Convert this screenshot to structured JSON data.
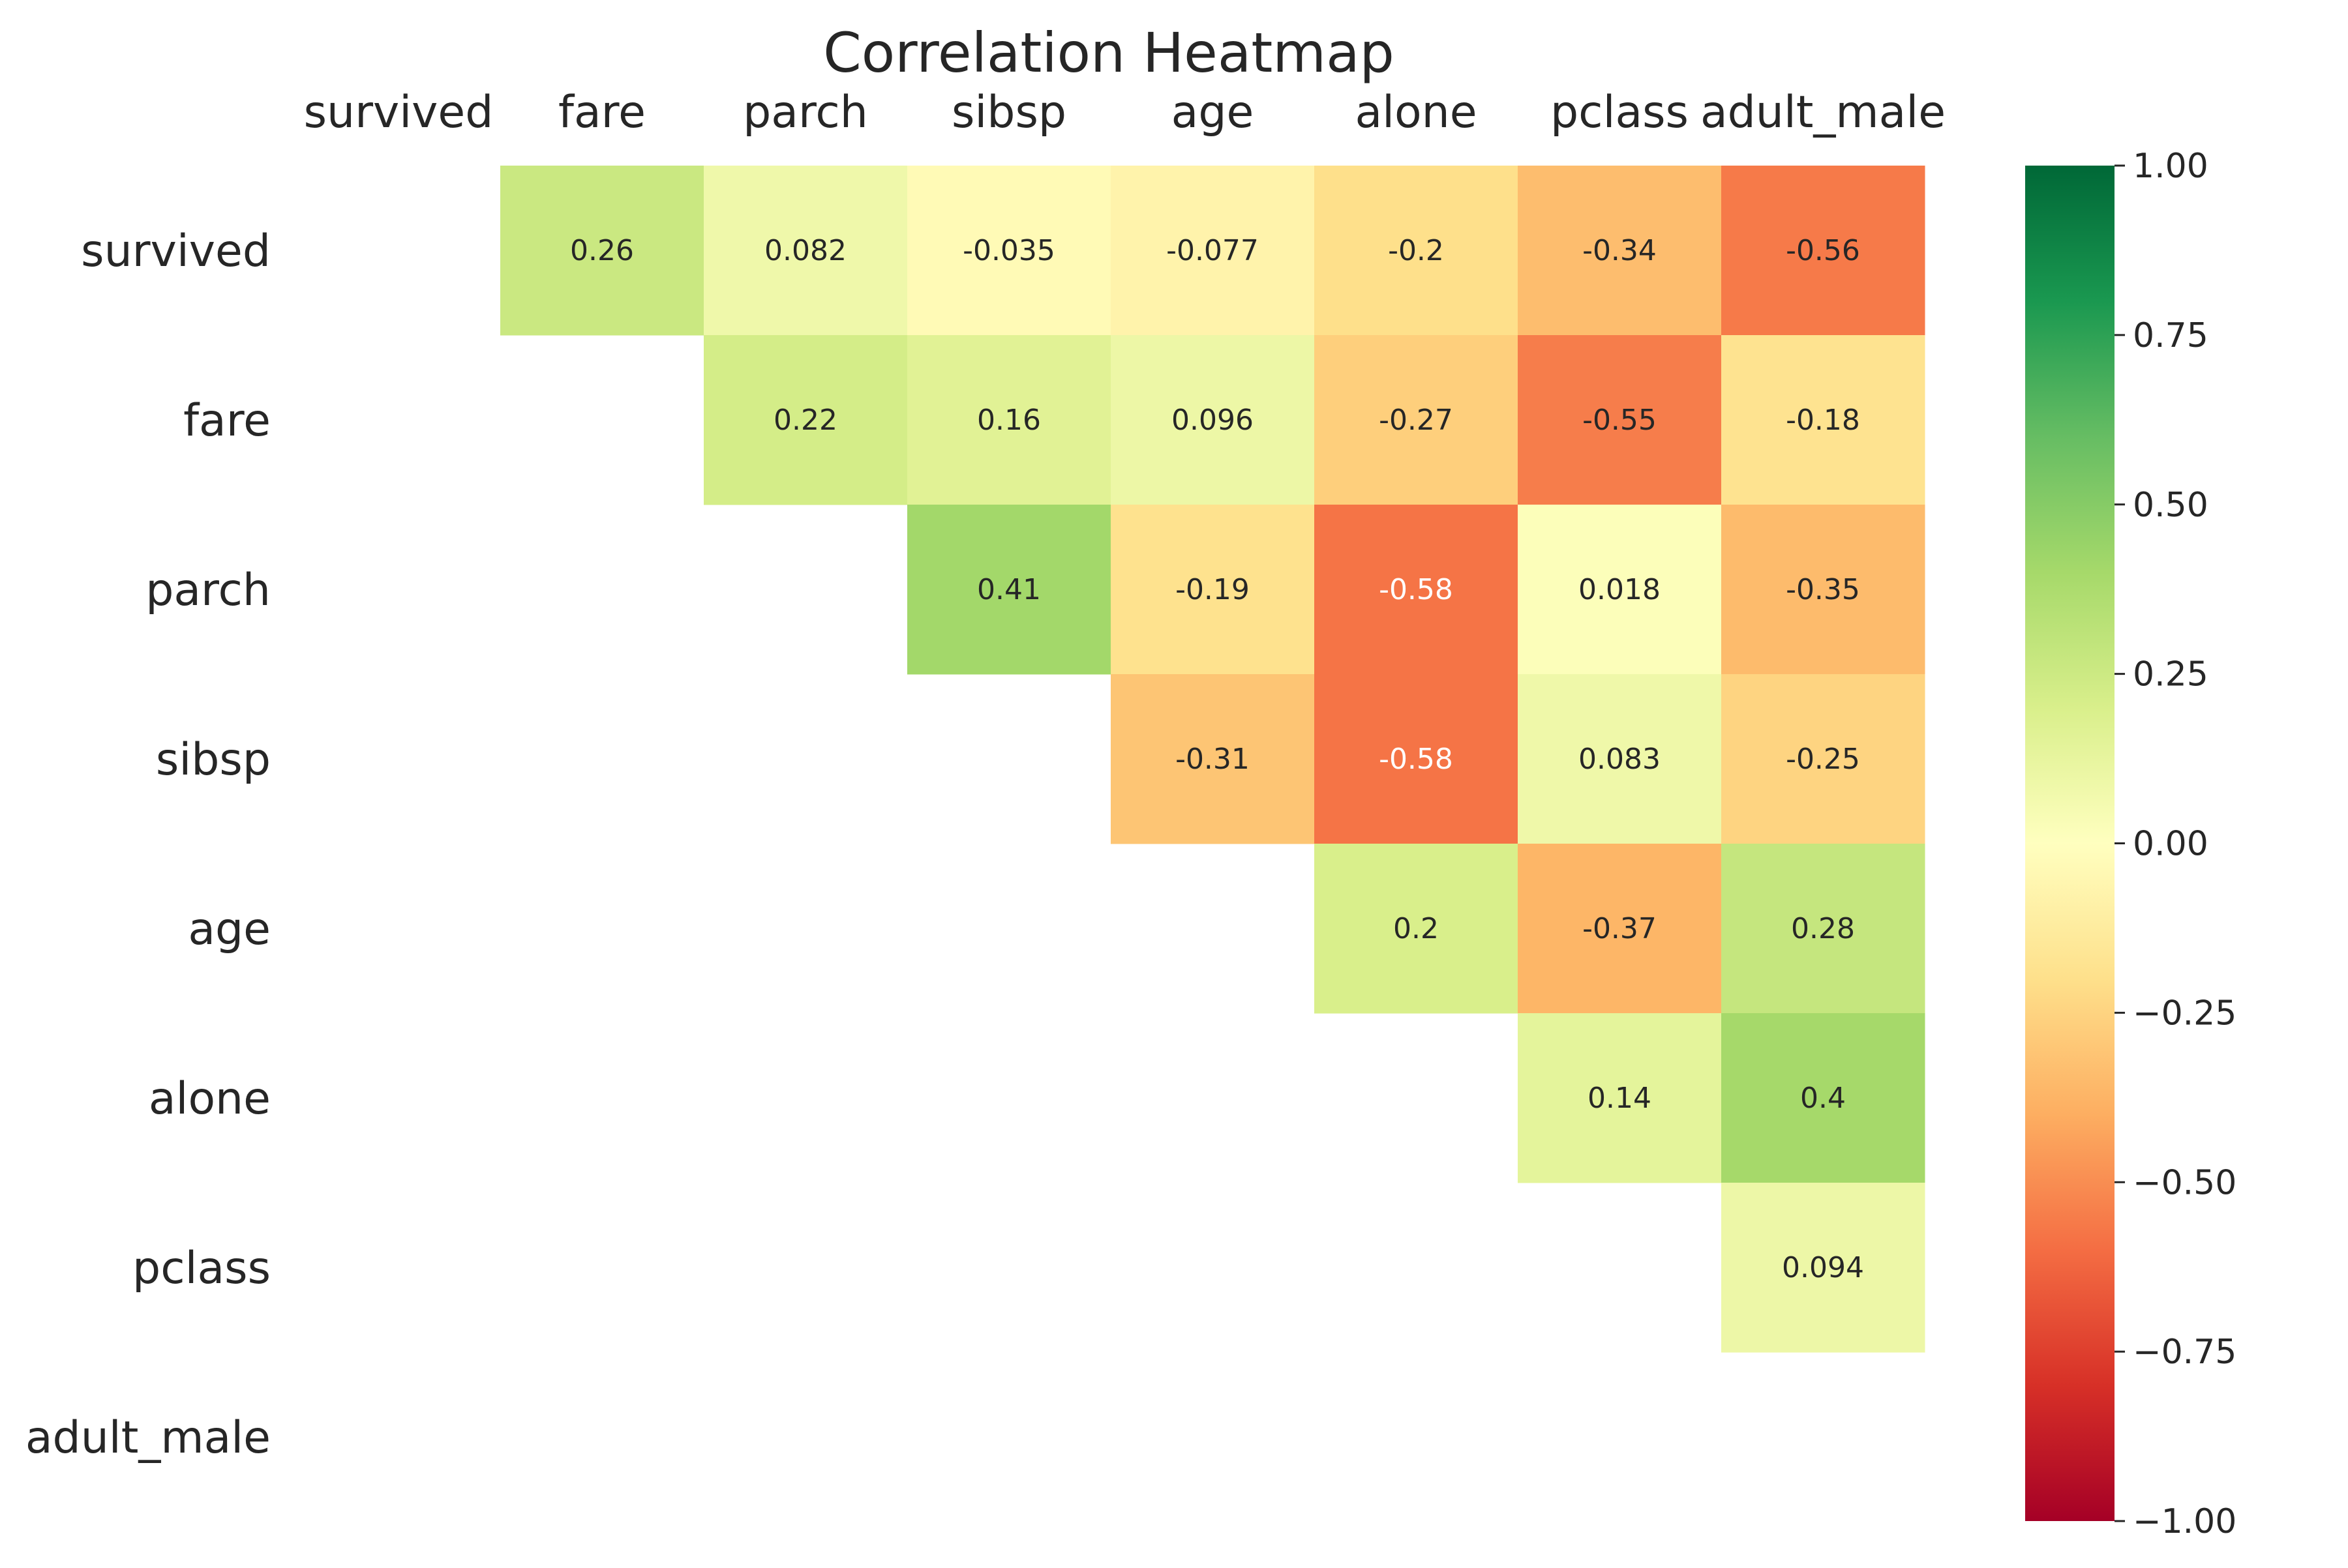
{
  "chart_data": {
    "type": "heatmap",
    "title": "Correlation Heatmap",
    "variables": [
      "survived",
      "fare",
      "parch",
      "sibsp",
      "age",
      "alone",
      "pclass",
      "adult_male"
    ],
    "mask": "lower-triangle-and-diagonal",
    "cells": [
      {
        "row": "survived",
        "col": "fare",
        "value": 0.26
      },
      {
        "row": "survived",
        "col": "parch",
        "value": 0.082
      },
      {
        "row": "survived",
        "col": "sibsp",
        "value": -0.035
      },
      {
        "row": "survived",
        "col": "age",
        "value": -0.077
      },
      {
        "row": "survived",
        "col": "alone",
        "value": -0.2
      },
      {
        "row": "survived",
        "col": "pclass",
        "value": -0.34
      },
      {
        "row": "survived",
        "col": "adult_male",
        "value": -0.56
      },
      {
        "row": "fare",
        "col": "parch",
        "value": 0.22
      },
      {
        "row": "fare",
        "col": "sibsp",
        "value": 0.16
      },
      {
        "row": "fare",
        "col": "age",
        "value": 0.096
      },
      {
        "row": "fare",
        "col": "alone",
        "value": -0.27
      },
      {
        "row": "fare",
        "col": "pclass",
        "value": -0.55
      },
      {
        "row": "fare",
        "col": "adult_male",
        "value": -0.18
      },
      {
        "row": "parch",
        "col": "sibsp",
        "value": 0.41
      },
      {
        "row": "parch",
        "col": "age",
        "value": -0.19
      },
      {
        "row": "parch",
        "col": "alone",
        "value": -0.58
      },
      {
        "row": "parch",
        "col": "pclass",
        "value": 0.018
      },
      {
        "row": "parch",
        "col": "adult_male",
        "value": -0.35
      },
      {
        "row": "sibsp",
        "col": "age",
        "value": -0.31
      },
      {
        "row": "sibsp",
        "col": "alone",
        "value": -0.58
      },
      {
        "row": "sibsp",
        "col": "pclass",
        "value": 0.083
      },
      {
        "row": "sibsp",
        "col": "adult_male",
        "value": -0.25
      },
      {
        "row": "age",
        "col": "alone",
        "value": 0.2
      },
      {
        "row": "age",
        "col": "pclass",
        "value": -0.37
      },
      {
        "row": "age",
        "col": "adult_male",
        "value": 0.28
      },
      {
        "row": "alone",
        "col": "pclass",
        "value": 0.14
      },
      {
        "row": "alone",
        "col": "adult_male",
        "value": 0.4
      },
      {
        "row": "pclass",
        "col": "adult_male",
        "value": 0.094
      }
    ],
    "colorbar": {
      "colormap": "RdYlGn",
      "range": [
        -1,
        1
      ],
      "ticks": [
        1,
        0.75,
        0.5,
        0.25,
        0,
        -0.25,
        -0.5,
        -0.75,
        -1
      ],
      "tick_labels": [
        "1.00",
        "0.75",
        "0.50",
        "0.25",
        "0.00",
        "−0.25",
        "−0.50",
        "−0.75",
        "−1.00"
      ]
    },
    "colors": {
      "text_dark": "#262626",
      "text_light": "#ffffff",
      "background": "#ffffff"
    },
    "x_axis_position": "top",
    "grid": false
  }
}
